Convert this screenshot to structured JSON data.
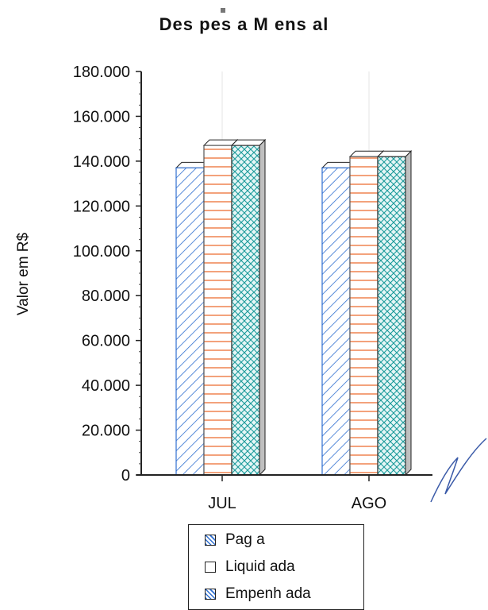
{
  "chart_data": {
    "type": "bar",
    "title": "Des pes a M ens al",
    "ylabel": "Valor em R$",
    "xlabel": "",
    "categories": [
      "JUL",
      "AGO"
    ],
    "series": [
      {
        "name": "Empenhada",
        "values": [
          137000,
          137000
        ]
      },
      {
        "name": "Liquidada",
        "values": [
          147000,
          142000
        ]
      },
      {
        "name": "Paga",
        "values": [
          147000,
          142000
        ]
      }
    ],
    "ylim": [
      0,
      180000
    ],
    "yticks": [
      "0",
      "20.000",
      "40.000",
      "60.000",
      "80.000",
      "100.000",
      "120.000",
      "140.000",
      "160.000",
      "180.000"
    ],
    "legend_position": "bottom",
    "grid": false,
    "colors": {
      "empenhada": "#2f6fd0",
      "liquidada": "#f08a5a",
      "paga": "#1a9a9a"
    }
  },
  "legend": {
    "items": [
      {
        "label": "Pag a",
        "icon": "crosshatch-swatch-icon"
      },
      {
        "label": "Liquid ada",
        "icon": "blank-swatch-icon"
      },
      {
        "label": "Empenh ada",
        "icon": "diagonal-swatch-icon"
      }
    ]
  }
}
